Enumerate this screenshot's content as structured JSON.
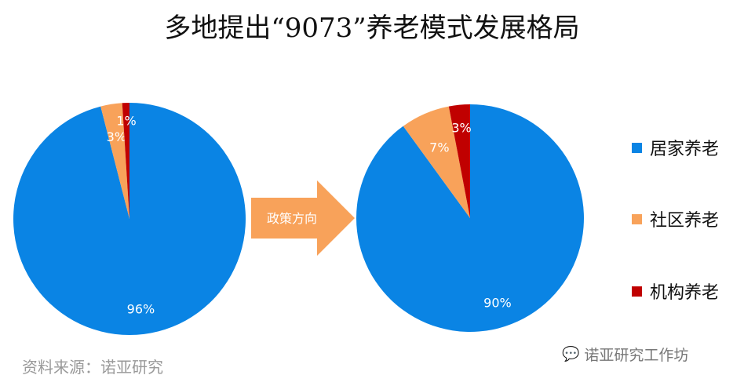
{
  "title": "多地提出“9073”养老模式发展格局",
  "arrow_label": "政策方向",
  "source": "资料来源：诺亚研究",
  "watermark": "诺亚研究工作坊",
  "chart_data": [
    {
      "type": "pie",
      "categories": [
        "居家养老",
        "社区养老",
        "机构养老"
      ],
      "values": [
        96,
        3,
        1
      ],
      "labels": [
        "96%",
        "3%",
        "1%"
      ],
      "colors": [
        "#0a84e4",
        "#f8a25a",
        "#c00000"
      ]
    },
    {
      "type": "pie",
      "categories": [
        "居家养老",
        "社区养老",
        "机构养老"
      ],
      "values": [
        90,
        7,
        3
      ],
      "labels": [
        "90%",
        "7%",
        "3%"
      ],
      "colors": [
        "#0a84e4",
        "#f8a25a",
        "#c00000"
      ]
    }
  ],
  "legend": {
    "position": "right",
    "items": [
      {
        "label": "居家养老",
        "color": "#0a84e4"
      },
      {
        "label": "社区养老",
        "color": "#f8a25a"
      },
      {
        "label": "机构养老",
        "color": "#c00000"
      }
    ]
  }
}
